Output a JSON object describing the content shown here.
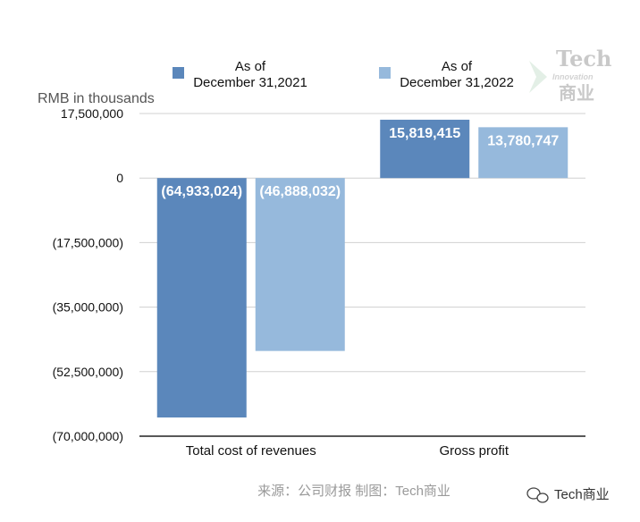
{
  "chart_data": {
    "type": "bar",
    "ylabel": "RMB in thousands",
    "categories": [
      "Total cost of revenues",
      "Gross profit"
    ],
    "series": [
      {
        "name": "As of December 31,2021",
        "values": [
          -64933024,
          15819415
        ],
        "labels": [
          "(64,933,024)",
          "15,819,415"
        ]
      },
      {
        "name": "As of December 31,2022",
        "values": [
          -46888032,
          13780747
        ],
        "labels": [
          "(46,888,032)",
          "13,780,747"
        ]
      }
    ],
    "legend_lines": [
      [
        "As of",
        "December 31,2021"
      ],
      [
        "As of",
        "December 31,2022"
      ]
    ],
    "yticks": [
      17500000,
      0,
      -17500000,
      -35000000,
      -52500000,
      -70000000
    ],
    "ytick_labels": [
      "17,500,000",
      "0",
      "(17,500,000)",
      "(35,000,000)",
      "(52,500,000)",
      "(70,000,000)"
    ],
    "ylim": [
      -70000000,
      17500000
    ],
    "grid": true,
    "legend_position": "top"
  },
  "colors": {
    "series_2021": "#5b87bb",
    "series_2022": "#96b9dc",
    "grid": "#d0d0d0",
    "axis": "#222222"
  },
  "source_text": "来源：公司财报 制图：Tech商业",
  "watermark": {
    "line1": "Tech",
    "line2": "Innovation",
    "line3": "商业"
  },
  "wechat_label": "Tech商业",
  "wechat_icon": "wechat-icon"
}
